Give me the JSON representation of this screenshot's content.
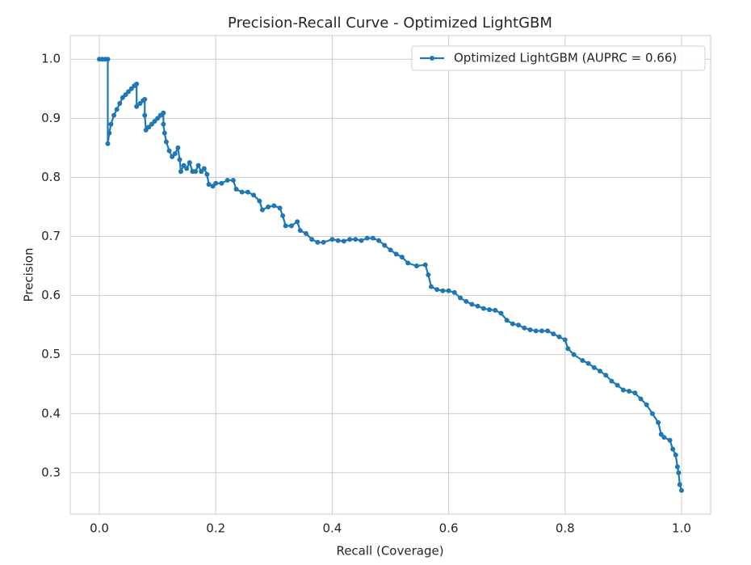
{
  "chart_data": {
    "type": "line",
    "title": "Precision-Recall Curve - Optimized LightGBM",
    "xlabel": "Recall (Coverage)",
    "ylabel": "Precision",
    "xlim": [
      -0.05,
      1.05
    ],
    "ylim": [
      0.23,
      1.04
    ],
    "xticks": [
      {
        "value": 0,
        "label": "0.0"
      },
      0.2,
      0.4,
      0.6,
      0.8,
      {
        "value": 1,
        "label": "1.0"
      }
    ],
    "yticks": [
      0.3,
      0.4,
      0.5,
      0.6,
      0.7,
      0.8,
      0.9,
      {
        "value": 1,
        "label": "1.0"
      }
    ],
    "grid": true,
    "legend": "upper right",
    "x": [
      0,
      0.005,
      0.01,
      0.0145,
      0.0145,
      0.017,
      0.02,
      0.025,
      0.03,
      0.035,
      0.04,
      0.045,
      0.05,
      0.055,
      0.06,
      0.064,
      0.064,
      0.07,
      0.075,
      0.078,
      0.078,
      0.08,
      0.085,
      0.09,
      0.095,
      0.1,
      0.105,
      0.11,
      0.11,
      0.112,
      0.115,
      0.12,
      0.125,
      0.13,
      0.135,
      0.138,
      0.14,
      0.145,
      0.15,
      0.155,
      0.16,
      0.165,
      0.17,
      0.175,
      0.18,
      0.185,
      0.188,
      0.195,
      0.2,
      0.21,
      0.22,
      0.23,
      0.235,
      0.245,
      0.255,
      0.265,
      0.275,
      0.28,
      0.29,
      0.3,
      0.31,
      0.315,
      0.32,
      0.33,
      0.34,
      0.345,
      0.355,
      0.365,
      0.375,
      0.385,
      0.4,
      0.41,
      0.42,
      0.43,
      0.44,
      0.45,
      0.46,
      0.47,
      0.48,
      0.49,
      0.5,
      0.51,
      0.52,
      0.53,
      0.545,
      0.56,
      0.565,
      0.57,
      0.58,
      0.59,
      0.6,
      0.61,
      0.62,
      0.63,
      0.64,
      0.65,
      0.66,
      0.67,
      0.68,
      0.69,
      0.7,
      0.71,
      0.72,
      0.73,
      0.74,
      0.75,
      0.76,
      0.77,
      0.78,
      0.79,
      0.8,
      0.805,
      0.815,
      0.83,
      0.84,
      0.85,
      0.86,
      0.87,
      0.88,
      0.89,
      0.9,
      0.91,
      0.92,
      0.93,
      0.94,
      0.95,
      0.96,
      0.965,
      0.97,
      0.98,
      0.985,
      0.99,
      0.993,
      0.995,
      0.997,
      1.0
    ],
    "series": [
      {
        "name": "Optimized LightGBM (AUPRC = 0.66)",
        "color": "#1f77b4",
        "values": [
          1,
          1,
          1,
          1,
          0.857,
          0.875,
          0.89,
          0.905,
          0.915,
          0.925,
          0.935,
          0.94,
          0.945,
          0.95,
          0.955,
          0.958,
          0.92,
          0.925,
          0.93,
          0.932,
          0.905,
          0.88,
          0.885,
          0.89,
          0.895,
          0.9,
          0.905,
          0.909,
          0.89,
          0.875,
          0.86,
          0.845,
          0.835,
          0.84,
          0.85,
          0.83,
          0.81,
          0.82,
          0.815,
          0.825,
          0.81,
          0.81,
          0.82,
          0.81,
          0.815,
          0.805,
          0.788,
          0.785,
          0.79,
          0.79,
          0.795,
          0.795,
          0.78,
          0.775,
          0.775,
          0.77,
          0.76,
          0.745,
          0.75,
          0.752,
          0.748,
          0.735,
          0.718,
          0.718,
          0.725,
          0.71,
          0.705,
          0.695,
          0.69,
          0.69,
          0.695,
          0.693,
          0.692,
          0.695,
          0.695,
          0.693,
          0.697,
          0.697,
          0.693,
          0.685,
          0.677,
          0.67,
          0.665,
          0.655,
          0.65,
          0.652,
          0.635,
          0.615,
          0.61,
          0.608,
          0.608,
          0.605,
          0.596,
          0.59,
          0.585,
          0.582,
          0.578,
          0.576,
          0.575,
          0.57,
          0.558,
          0.552,
          0.55,
          0.545,
          0.542,
          0.54,
          0.54,
          0.54,
          0.535,
          0.53,
          0.525,
          0.51,
          0.5,
          0.49,
          0.485,
          0.478,
          0.472,
          0.465,
          0.455,
          0.448,
          0.44,
          0.438,
          0.435,
          0.425,
          0.415,
          0.4,
          0.385,
          0.365,
          0.36,
          0.355,
          0.34,
          0.33,
          0.31,
          0.3,
          0.28,
          0.27
        ]
      }
    ]
  }
}
